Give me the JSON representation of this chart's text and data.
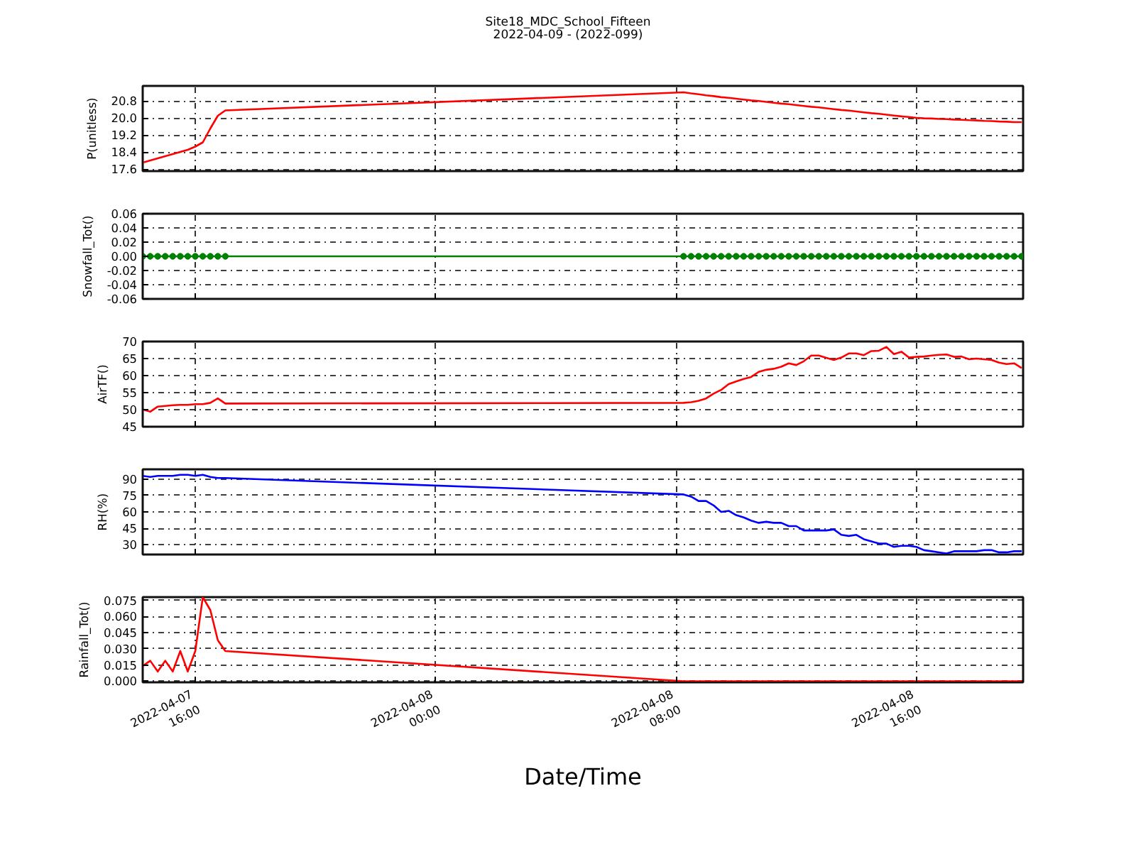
{
  "chart_data": [
    {
      "type": "line",
      "title": "Site18_MDC_School_Fifteen",
      "subtitle": "2022-04-09 - (2022-099)",
      "ylabel": "P(unitless)",
      "x": [
        "2022-04-07T14:15",
        "2022-04-07T14:30",
        "2022-04-07T14:45",
        "2022-04-07T15:00",
        "2022-04-07T15:15",
        "2022-04-07T15:30",
        "2022-04-07T15:45",
        "2022-04-07T16:00",
        "2022-04-07T16:15",
        "2022-04-07T16:30",
        "2022-04-07T16:45",
        "2022-04-07T17:00",
        "2022-04-08T08:15",
        "2022-04-08T08:30",
        "2022-04-08T08:45",
        "2022-04-08T09:00",
        "2022-04-08T09:15",
        "2022-04-08T09:30",
        "2022-04-08T09:45",
        "2022-04-08T10:00",
        "2022-04-08T10:15",
        "2022-04-08T10:30",
        "2022-04-08T10:45",
        "2022-04-08T11:00",
        "2022-04-08T11:15",
        "2022-04-08T11:30",
        "2022-04-08T11:45",
        "2022-04-08T12:00",
        "2022-04-08T12:15",
        "2022-04-08T12:30",
        "2022-04-08T12:45",
        "2022-04-08T13:00",
        "2022-04-08T13:15",
        "2022-04-08T13:30",
        "2022-04-08T13:45",
        "2022-04-08T14:00",
        "2022-04-08T14:15",
        "2022-04-08T14:30",
        "2022-04-08T14:45",
        "2022-04-08T15:00",
        "2022-04-08T15:15",
        "2022-04-08T15:30",
        "2022-04-08T15:45",
        "2022-04-08T16:00",
        "2022-04-08T16:15",
        "2022-04-08T16:30",
        "2022-04-08T16:45",
        "2022-04-08T17:00",
        "2022-04-08T17:15",
        "2022-04-08T17:30",
        "2022-04-08T17:45",
        "2022-04-08T18:00",
        "2022-04-08T18:15",
        "2022-04-08T18:30",
        "2022-04-08T18:45",
        "2022-04-08T19:00",
        "2022-04-08T19:15",
        "2022-04-08T19:30"
      ],
      "xlim": [
        "2022-04-07T14:15",
        "2022-04-08T19:33"
      ],
      "xticks": [
        "2022-04-07T16:00",
        "2022-04-08T00:00",
        "2022-04-08T08:00",
        "2022-04-08T16:00"
      ],
      "ylim": [
        17.5,
        21.5
      ],
      "yticks": [
        17.6,
        18.4,
        19.2,
        {
          "value": 20,
          "label": "20.0"
        },
        20.8
      ],
      "series": [
        {
          "color": "#ff0000",
          "values": [
            17.9,
            18.0,
            18.1,
            18.2,
            18.3,
            18.4,
            18.5,
            18.65,
            18.85,
            19.5,
            20.1,
            20.35,
            21.2,
            21.15,
            21.11,
            21.06,
            21.02,
            20.97,
            20.94,
            20.9,
            20.86,
            20.82,
            20.79,
            20.75,
            20.71,
            20.67,
            20.64,
            20.6,
            20.56,
            20.52,
            20.49,
            20.45,
            20.41,
            20.37,
            20.34,
            20.3,
            20.26,
            20.22,
            20.19,
            20.15,
            20.11,
            20.07,
            20.04,
            20.0,
            19.98,
            19.97,
            19.95,
            19.94,
            19.92,
            19.91,
            19.89,
            19.88,
            19.86,
            19.85,
            19.83,
            19.82,
            19.8,
            19.8
          ]
        }
      ],
      "grid": true,
      "tick_labels": "y"
    },
    {
      "type": "line",
      "ylabel": "Snowfall_Tot()",
      "marker": "circle",
      "x": [
        "2022-04-07T14:15",
        "2022-04-07T14:30",
        "2022-04-07T14:45",
        "2022-04-07T15:00",
        "2022-04-07T15:15",
        "2022-04-07T15:30",
        "2022-04-07T15:45",
        "2022-04-07T16:00",
        "2022-04-07T16:15",
        "2022-04-07T16:30",
        "2022-04-07T16:45",
        "2022-04-07T17:00",
        "2022-04-08T08:15",
        "2022-04-08T08:30",
        "2022-04-08T08:45",
        "2022-04-08T09:00",
        "2022-04-08T09:15",
        "2022-04-08T09:30",
        "2022-04-08T09:45",
        "2022-04-08T10:00",
        "2022-04-08T10:15",
        "2022-04-08T10:30",
        "2022-04-08T10:45",
        "2022-04-08T11:00",
        "2022-04-08T11:15",
        "2022-04-08T11:30",
        "2022-04-08T11:45",
        "2022-04-08T12:00",
        "2022-04-08T12:15",
        "2022-04-08T12:30",
        "2022-04-08T12:45",
        "2022-04-08T13:00",
        "2022-04-08T13:15",
        "2022-04-08T13:30",
        "2022-04-08T13:45",
        "2022-04-08T14:00",
        "2022-04-08T14:15",
        "2022-04-08T14:30",
        "2022-04-08T14:45",
        "2022-04-08T15:00",
        "2022-04-08T15:15",
        "2022-04-08T15:30",
        "2022-04-08T15:45",
        "2022-04-08T16:00",
        "2022-04-08T16:15",
        "2022-04-08T16:30",
        "2022-04-08T16:45",
        "2022-04-08T17:00",
        "2022-04-08T17:15",
        "2022-04-08T17:30",
        "2022-04-08T17:45",
        "2022-04-08T18:00",
        "2022-04-08T18:15",
        "2022-04-08T18:30",
        "2022-04-08T18:45",
        "2022-04-08T19:00",
        "2022-04-08T19:15",
        "2022-04-08T19:30"
      ],
      "xlim": [
        "2022-04-07T14:15",
        "2022-04-08T19:33"
      ],
      "xticks": [
        "2022-04-07T16:00",
        "2022-04-08T00:00",
        "2022-04-08T08:00",
        "2022-04-08T16:00"
      ],
      "ylim": [
        -0.06,
        0.06
      ],
      "yticks": [
        -0.06,
        -0.04,
        -0.02,
        {
          "value": 0,
          "label": "0.00"
        },
        0.02,
        0.04,
        0.06
      ],
      "series": [
        {
          "color": "#008000",
          "values": [
            0,
            0,
            0,
            0,
            0,
            0,
            0,
            0,
            0,
            0,
            0,
            0,
            0,
            0,
            0,
            0,
            0,
            0,
            0,
            0,
            0,
            0,
            0,
            0,
            0,
            0,
            0,
            0,
            0,
            0,
            0,
            0,
            0,
            0,
            0,
            0,
            0,
            0,
            0,
            0,
            0,
            0,
            0,
            0,
            0,
            0,
            0,
            0,
            0,
            0,
            0,
            0,
            0,
            0,
            0,
            0,
            0,
            0
          ]
        }
      ],
      "grid": true,
      "tick_labels": "y"
    },
    {
      "type": "line",
      "ylabel": "AirTF()",
      "x": [
        "2022-04-07T14:15",
        "2022-04-07T14:30",
        "2022-04-07T14:45",
        "2022-04-07T15:00",
        "2022-04-07T15:15",
        "2022-04-07T15:30",
        "2022-04-07T15:45",
        "2022-04-07T16:00",
        "2022-04-07T16:15",
        "2022-04-07T16:30",
        "2022-04-07T16:45",
        "2022-04-07T17:00",
        "2022-04-08T08:15",
        "2022-04-08T08:30",
        "2022-04-08T08:45",
        "2022-04-08T09:00",
        "2022-04-08T09:15",
        "2022-04-08T09:30",
        "2022-04-08T09:45",
        "2022-04-08T10:00",
        "2022-04-08T10:15",
        "2022-04-08T10:30",
        "2022-04-08T10:45",
        "2022-04-08T11:00",
        "2022-04-08T11:15",
        "2022-04-08T11:30",
        "2022-04-08T11:45",
        "2022-04-08T12:00",
        "2022-04-08T12:15",
        "2022-04-08T12:30",
        "2022-04-08T12:45",
        "2022-04-08T13:00",
        "2022-04-08T13:15",
        "2022-04-08T13:30",
        "2022-04-08T13:45",
        "2022-04-08T14:00",
        "2022-04-08T14:15",
        "2022-04-08T14:30",
        "2022-04-08T14:45",
        "2022-04-08T15:00",
        "2022-04-08T15:15",
        "2022-04-08T15:30",
        "2022-04-08T15:45",
        "2022-04-08T16:00",
        "2022-04-08T16:15",
        "2022-04-08T16:30",
        "2022-04-08T16:45",
        "2022-04-08T17:00",
        "2022-04-08T17:15",
        "2022-04-08T17:30",
        "2022-04-08T17:45",
        "2022-04-08T18:00",
        "2022-04-08T18:15",
        "2022-04-08T18:30",
        "2022-04-08T18:45",
        "2022-04-08T19:00",
        "2022-04-08T19:15",
        "2022-04-08T19:30"
      ],
      "xlim": [
        "2022-04-07T14:15",
        "2022-04-08T19:33"
      ],
      "xticks": [
        "2022-04-07T16:00",
        "2022-04-08T00:00",
        "2022-04-08T08:00",
        "2022-04-08T16:00"
      ],
      "ylim": [
        45,
        70
      ],
      "yticks": [
        45,
        50,
        55,
        60,
        65,
        70
      ],
      "series": [
        {
          "color": "#ff0000",
          "values": [
            50.1,
            49.4,
            50.9,
            51.1,
            51.3,
            51.4,
            51.4,
            51.6,
            51.6,
            52.0,
            53.3,
            51.8,
            52.0,
            52.2,
            52.6,
            53.3,
            54.7,
            55.8,
            57.5,
            58.3,
            59.0,
            59.6,
            61.1,
            61.7,
            62.0,
            62.6,
            63.6,
            63.1,
            64.2,
            65.9,
            65.9,
            65.2,
            64.6,
            65.3,
            66.5,
            66.5,
            66.0,
            67.2,
            67.3,
            68.4,
            66.3,
            67.0,
            65.3,
            65.5,
            65.6,
            65.9,
            66.1,
            66.2,
            65.5,
            65.6,
            64.8,
            65.0,
            64.8,
            64.6,
            63.8,
            63.4,
            63.6,
            62.2
          ]
        }
      ],
      "grid": true,
      "tick_labels": "y"
    },
    {
      "type": "line",
      "ylabel": "RH(%)",
      "x": [
        "2022-04-07T14:15",
        "2022-04-07T14:30",
        "2022-04-07T14:45",
        "2022-04-07T15:00",
        "2022-04-07T15:15",
        "2022-04-07T15:30",
        "2022-04-07T15:45",
        "2022-04-07T16:00",
        "2022-04-07T16:15",
        "2022-04-07T16:30",
        "2022-04-07T16:45",
        "2022-04-07T17:00",
        "2022-04-08T08:15",
        "2022-04-08T08:30",
        "2022-04-08T08:45",
        "2022-04-08T09:00",
        "2022-04-08T09:15",
        "2022-04-08T09:30",
        "2022-04-08T09:45",
        "2022-04-08T10:00",
        "2022-04-08T10:15",
        "2022-04-08T10:30",
        "2022-04-08T10:45",
        "2022-04-08T11:00",
        "2022-04-08T11:15",
        "2022-04-08T11:30",
        "2022-04-08T11:45",
        "2022-04-08T12:00",
        "2022-04-08T12:15",
        "2022-04-08T12:30",
        "2022-04-08T12:45",
        "2022-04-08T13:00",
        "2022-04-08T13:15",
        "2022-04-08T13:30",
        "2022-04-08T13:45",
        "2022-04-08T14:00",
        "2022-04-08T14:15",
        "2022-04-08T14:30",
        "2022-04-08T14:45",
        "2022-04-08T15:00",
        "2022-04-08T15:15",
        "2022-04-08T15:30",
        "2022-04-08T15:45",
        "2022-04-08T16:00",
        "2022-04-08T16:15",
        "2022-04-08T16:30",
        "2022-04-08T16:45",
        "2022-04-08T17:00",
        "2022-04-08T17:15",
        "2022-04-08T17:30",
        "2022-04-08T17:45",
        "2022-04-08T18:00",
        "2022-04-08T18:15",
        "2022-04-08T18:30",
        "2022-04-08T18:45",
        "2022-04-08T19:00",
        "2022-04-08T19:15",
        "2022-04-08T19:30"
      ],
      "xlim": [
        "2022-04-07T14:15",
        "2022-04-08T19:33"
      ],
      "xticks": [
        "2022-04-07T16:00",
        "2022-04-08T00:00",
        "2022-04-08T08:00",
        "2022-04-08T16:00"
      ],
      "ylim": [
        21,
        99
      ],
      "yticks": [
        30,
        45,
        60,
        75,
        90
      ],
      "series": [
        {
          "color": "#0000ff",
          "values": [
            93,
            92,
            93,
            93,
            93,
            94,
            94,
            93,
            94,
            92,
            91,
            91,
            76,
            74,
            70,
            70,
            66,
            60,
            61,
            57,
            55,
            52,
            50,
            51,
            50,
            50,
            47,
            47,
            43,
            43,
            43,
            43,
            44,
            39,
            38,
            39,
            35,
            33,
            31,
            31,
            28,
            29,
            29,
            28,
            25,
            24,
            23,
            22,
            24,
            24,
            24,
            24,
            25,
            25,
            23,
            23,
            24,
            24
          ]
        }
      ],
      "grid": true,
      "tick_labels": "y"
    },
    {
      "type": "line",
      "ylabel": "Rainfall_Tot()",
      "xlabel": "Date/Time",
      "x": [
        "2022-04-07T14:15",
        "2022-04-07T14:30",
        "2022-04-07T14:45",
        "2022-04-07T15:00",
        "2022-04-07T15:15",
        "2022-04-07T15:30",
        "2022-04-07T15:45",
        "2022-04-07T16:00",
        "2022-04-07T16:15",
        "2022-04-07T16:30",
        "2022-04-07T16:45",
        "2022-04-07T17:00",
        "2022-04-08T08:15",
        "2022-04-08T08:30",
        "2022-04-08T08:45",
        "2022-04-08T09:00",
        "2022-04-08T09:15",
        "2022-04-08T09:30",
        "2022-04-08T09:45",
        "2022-04-08T10:00",
        "2022-04-08T10:15",
        "2022-04-08T10:30",
        "2022-04-08T10:45",
        "2022-04-08T11:00",
        "2022-04-08T11:15",
        "2022-04-08T11:30",
        "2022-04-08T11:45",
        "2022-04-08T12:00",
        "2022-04-08T12:15",
        "2022-04-08T12:30",
        "2022-04-08T12:45",
        "2022-04-08T13:00",
        "2022-04-08T13:15",
        "2022-04-08T13:30",
        "2022-04-08T13:45",
        "2022-04-08T14:00",
        "2022-04-08T14:15",
        "2022-04-08T14:30",
        "2022-04-08T14:45",
        "2022-04-08T15:00",
        "2022-04-08T15:15",
        "2022-04-08T15:30",
        "2022-04-08T15:45",
        "2022-04-08T16:00",
        "2022-04-08T16:15",
        "2022-04-08T16:30",
        "2022-04-08T16:45",
        "2022-04-08T17:00",
        "2022-04-08T17:15",
        "2022-04-08T17:30",
        "2022-04-08T17:45",
        "2022-04-08T18:00",
        "2022-04-08T18:15",
        "2022-04-08T18:30",
        "2022-04-08T18:45",
        "2022-04-08T19:00",
        "2022-04-08T19:15",
        "2022-04-08T19:30"
      ],
      "xlim": [
        "2022-04-07T14:15",
        "2022-04-08T19:33"
      ],
      "xticks": [
        {
          "value": "2022-04-07T16:00",
          "label": "2022-04-07\n16:00"
        },
        {
          "value": "2022-04-08T00:00",
          "label": "2022-04-08\n00:00"
        },
        {
          "value": "2022-04-08T08:00",
          "label": "2022-04-08\n08:00"
        },
        {
          "value": "2022-04-08T16:00",
          "label": "2022-04-08\n16:00"
        }
      ],
      "ylim": [
        -0.001,
        0.078
      ],
      "yticks": [
        {
          "value": 0,
          "label": "0.000"
        },
        0.015,
        {
          "value": 0.03,
          "label": "0.030"
        },
        0.045,
        {
          "value": 0.06,
          "label": "0.060"
        },
        0.075
      ],
      "series": [
        {
          "color": "#ff0000",
          "values": [
            0.014,
            0.019,
            0.009,
            0.019,
            0.009,
            0.028,
            0.009,
            0.028,
            0.078,
            0.066,
            0.038,
            0.028,
            0,
            0,
            0,
            0,
            0,
            0,
            0,
            0,
            0,
            0,
            0,
            0,
            0,
            0,
            0,
            0,
            0,
            0,
            0,
            0,
            0,
            0,
            0,
            0,
            0,
            0,
            0,
            0,
            0,
            0,
            0,
            0,
            0,
            0,
            0,
            0,
            0,
            0,
            0,
            0,
            0,
            0,
            0,
            0,
            0,
            0
          ]
        }
      ],
      "grid": true
    }
  ]
}
